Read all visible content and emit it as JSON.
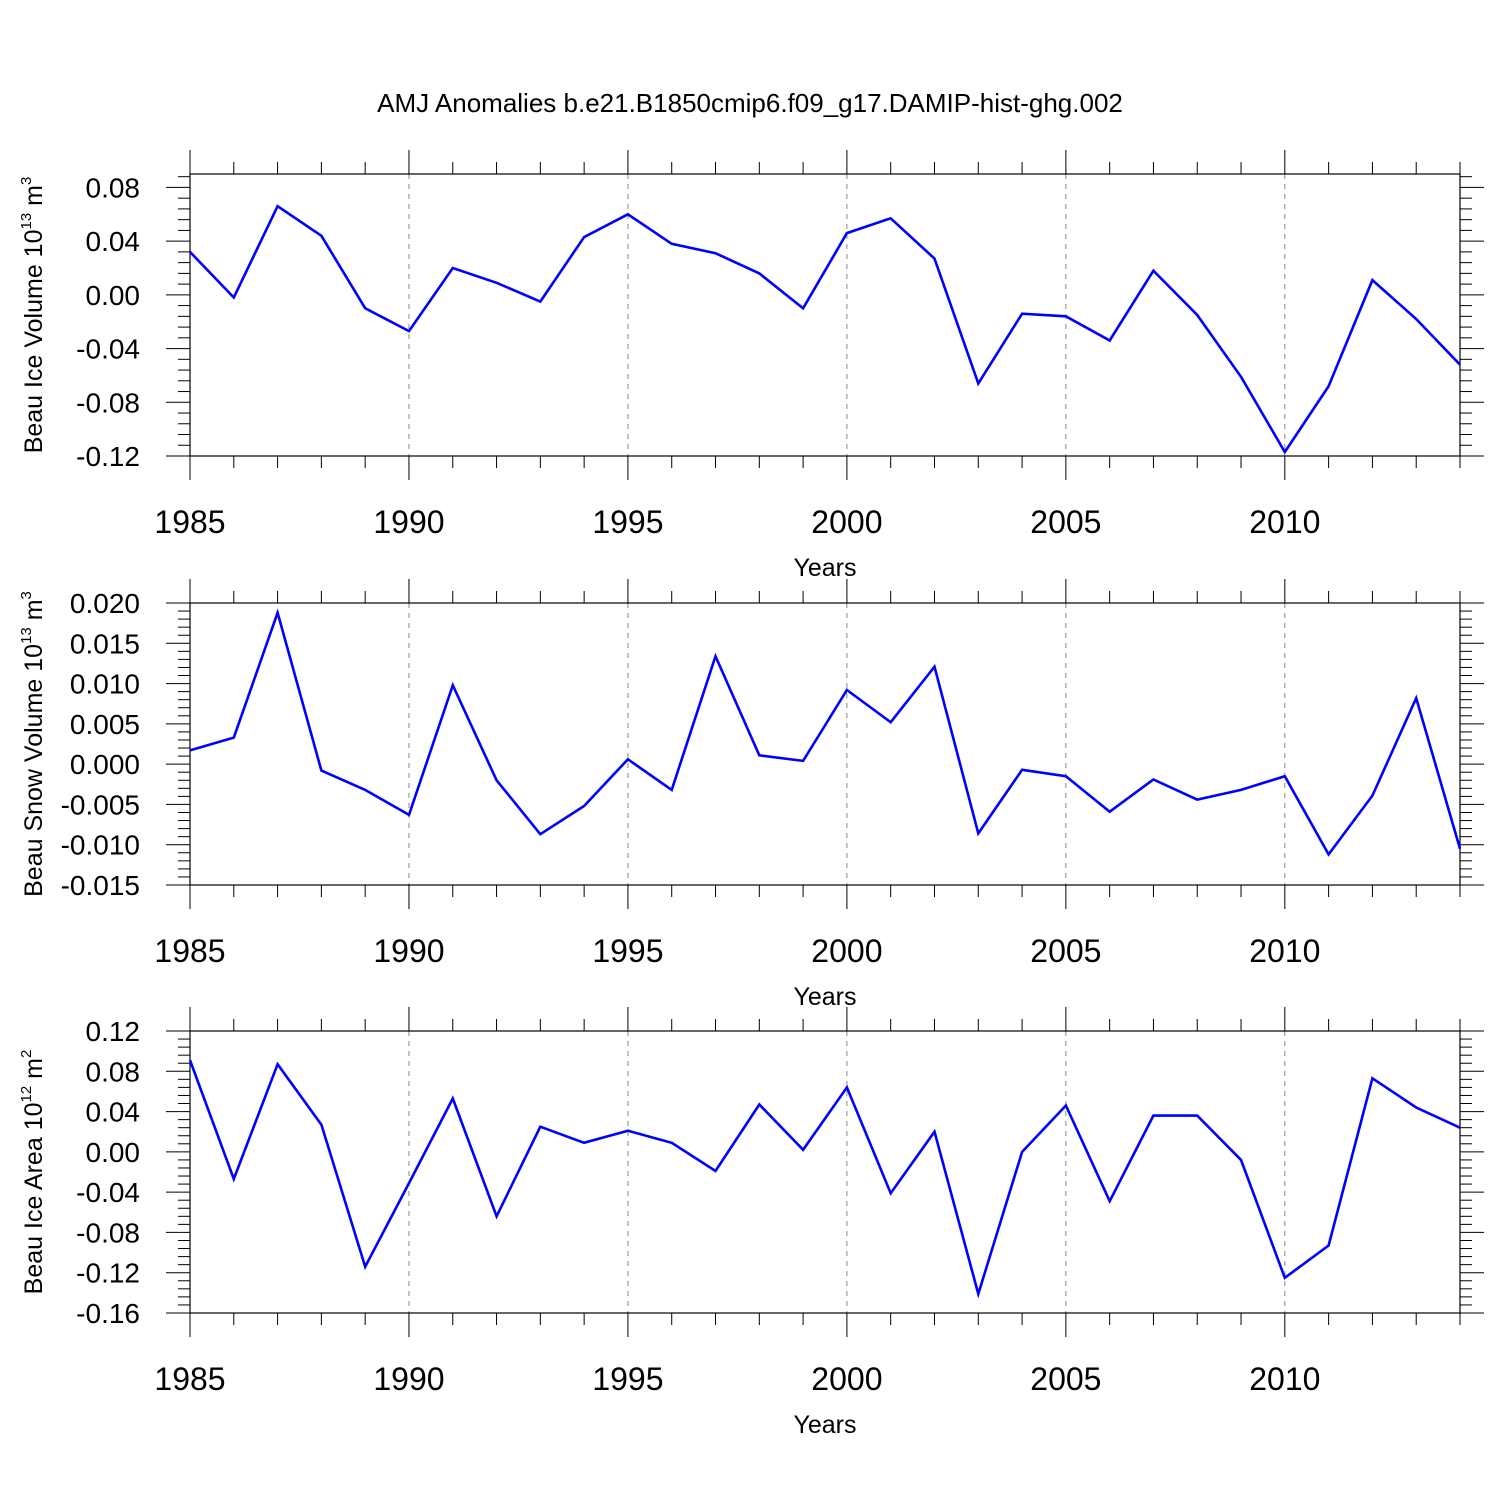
{
  "title": "AMJ Anomalies b.e21.B1850cmip6.f09_g17.DAMIP-hist-ghg.002",
  "colors": {
    "line": "#0000ff",
    "axis": "#000000",
    "grid": "#888888"
  },
  "chart_data": [
    {
      "type": "line",
      "ylabel_text": "Beau Ice Volume 10",
      "ylabel_exp": "13",
      "ylabel_unit": " m",
      "ylabel_unit_exp": "3",
      "xlabel": "Years",
      "xlim": [
        1985,
        2014
      ],
      "ylim": [
        -0.12,
        0.09
      ],
      "xticks": [
        "1985",
        "1990",
        "1995",
        "2000",
        "2005",
        "2010"
      ],
      "xtick_values": [
        1985,
        1990,
        1995,
        2000,
        2005,
        2010
      ],
      "yticks": [
        "0.08",
        "0.04",
        "0.00",
        "-0.04",
        "-0.08",
        "-0.12"
      ],
      "ytick_values": [
        0.08,
        0.04,
        0.0,
        -0.04,
        -0.08,
        -0.12
      ],
      "grid": "vertical dashed at labeled years",
      "x": [
        1985,
        1986,
        1987,
        1988,
        1989,
        1990,
        1991,
        1992,
        1993,
        1994,
        1995,
        1996,
        1997,
        1998,
        1999,
        2000,
        2001,
        2002,
        2003,
        2004,
        2005,
        2006,
        2007,
        2008,
        2009,
        2010,
        2011,
        2012,
        2013,
        2014
      ],
      "values": [
        0.032,
        -0.002,
        0.066,
        0.044,
        -0.01,
        -0.027,
        0.02,
        0.009,
        -0.005,
        0.043,
        0.06,
        0.038,
        0.031,
        0.016,
        -0.01,
        0.046,
        0.057,
        0.027,
        -0.066,
        -0.014,
        -0.016,
        -0.034,
        0.018,
        -0.015,
        -0.061,
        -0.117,
        -0.068,
        0.011,
        -0.018,
        -0.052
      ]
    },
    {
      "type": "line",
      "ylabel_text": "Beau Snow Volume 10",
      "ylabel_exp": "13",
      "ylabel_unit": " m",
      "ylabel_unit_exp": "3",
      "xlabel": "Years",
      "xlim": [
        1985,
        2014
      ],
      "ylim": [
        -0.015,
        0.02
      ],
      "xticks": [
        "1985",
        "1990",
        "1995",
        "2000",
        "2005",
        "2010"
      ],
      "xtick_values": [
        1985,
        1990,
        1995,
        2000,
        2005,
        2010
      ],
      "yticks": [
        "0.020",
        "0.015",
        "0.010",
        "0.005",
        "0.000",
        "-0.005",
        "-0.010",
        "-0.015"
      ],
      "ytick_values": [
        0.02,
        0.015,
        0.01,
        0.005,
        0.0,
        -0.005,
        -0.01,
        -0.015
      ],
      "grid": "vertical dashed at labeled years",
      "x": [
        1985,
        1986,
        1987,
        1988,
        1989,
        1990,
        1991,
        1992,
        1993,
        1994,
        1995,
        1996,
        1997,
        1998,
        1999,
        2000,
        2001,
        2002,
        2003,
        2004,
        2005,
        2006,
        2007,
        2008,
        2009,
        2010,
        2011,
        2012,
        2013,
        2014
      ],
      "values": [
        0.0017,
        0.0033,
        0.0188,
        -0.0008,
        -0.0032,
        -0.0063,
        0.0098,
        -0.002,
        -0.0087,
        -0.0052,
        0.0006,
        -0.0032,
        0.0134,
        0.0011,
        0.0004,
        0.0092,
        0.0052,
        0.0121,
        -0.0086,
        -0.0007,
        -0.0015,
        -0.0059,
        -0.0019,
        -0.0044,
        -0.0032,
        -0.0015,
        -0.0112,
        -0.0039,
        0.0082,
        -0.0105
      ]
    },
    {
      "type": "line",
      "ylabel_text": "Beau Ice Area 10",
      "ylabel_exp": "12",
      "ylabel_unit": " m",
      "ylabel_unit_exp": "2",
      "xlabel": "Years",
      "xlim": [
        1985,
        2014
      ],
      "ylim": [
        -0.16,
        0.12
      ],
      "xticks": [
        "1985",
        "1990",
        "1995",
        "2000",
        "2005",
        "2010"
      ],
      "xtick_values": [
        1985,
        1990,
        1995,
        2000,
        2005,
        2010
      ],
      "yticks": [
        "0.12",
        "0.08",
        "0.04",
        "0.00",
        "-0.04",
        "-0.08",
        "-0.12",
        "-0.16"
      ],
      "ytick_values": [
        0.12,
        0.08,
        0.04,
        0.0,
        -0.04,
        -0.08,
        -0.12,
        -0.16
      ],
      "grid": "vertical dashed at labeled years",
      "x": [
        1985,
        1986,
        1987,
        1988,
        1989,
        1990,
        1991,
        1992,
        1993,
        1994,
        1995,
        1996,
        1997,
        1998,
        1999,
        2000,
        2001,
        2002,
        2003,
        2004,
        2005,
        2006,
        2007,
        2008,
        2009,
        2010,
        2011,
        2012,
        2013,
        2014
      ],
      "values": [
        0.091,
        -0.027,
        0.087,
        0.027,
        -0.114,
        -0.031,
        0.053,
        -0.064,
        0.025,
        0.009,
        0.021,
        0.009,
        -0.019,
        0.047,
        0.002,
        0.064,
        -0.041,
        0.02,
        -0.141,
        0.0,
        0.046,
        -0.049,
        0.036,
        0.036,
        -0.008,
        -0.125,
        -0.093,
        0.073,
        0.044,
        0.024
      ]
    }
  ]
}
